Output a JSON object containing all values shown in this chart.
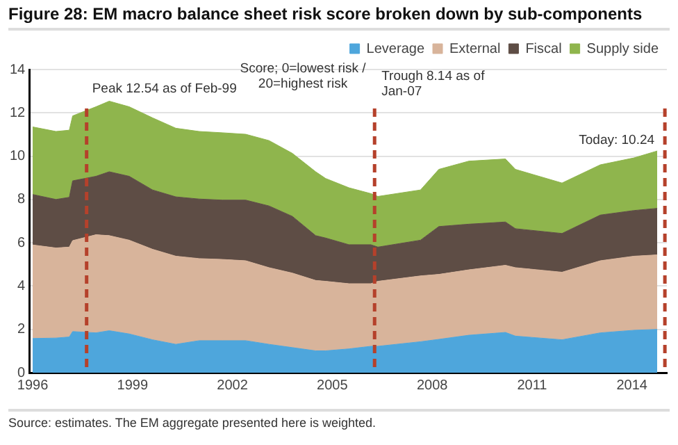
{
  "chart_data": {
    "type": "area",
    "stacked": true,
    "title": "Figure 28: EM macro balance sheet risk score broken down by sub-components",
    "x": [
      1996.0,
      1996.7,
      1997.1,
      1997.2,
      1997.9,
      1998.3,
      1998.9,
      1999.6,
      2000.3,
      2001.0,
      2001.7,
      2002.4,
      2003.1,
      2003.8,
      2004.5,
      2004.8,
      2005.5,
      2006.16,
      2006.37,
      2007.65,
      2008.2,
      2009.1,
      2010.2,
      2010.5,
      2011.9,
      2013.05,
      2014.06,
      2014.76
    ],
    "series": [
      {
        "name": "Leverage",
        "color": "#4ea6dc",
        "values": [
          1.58,
          1.6,
          1.65,
          1.9,
          1.84,
          1.94,
          1.79,
          1.52,
          1.31,
          1.48,
          1.48,
          1.48,
          1.31,
          1.16,
          1.01,
          1.01,
          1.1,
          1.22,
          1.22,
          1.43,
          1.54,
          1.73,
          1.86,
          1.69,
          1.52,
          1.84,
          1.96,
          2.0
        ]
      },
      {
        "name": "External",
        "color": "#d8b49b",
        "values": [
          4.32,
          4.16,
          4.15,
          4.2,
          4.53,
          4.39,
          4.33,
          4.18,
          4.07,
          3.79,
          3.75,
          3.69,
          3.54,
          3.44,
          3.25,
          3.21,
          3.01,
          2.89,
          3.0,
          3.04,
          3.0,
          3.02,
          3.1,
          3.16,
          3.12,
          3.33,
          3.42,
          3.44
        ]
      },
      {
        "name": "Fiscal",
        "color": "#5e4d45",
        "values": [
          2.33,
          2.24,
          2.3,
          2.76,
          2.7,
          2.95,
          2.95,
          2.74,
          2.74,
          2.75,
          2.74,
          2.8,
          2.85,
          2.62,
          2.07,
          2.0,
          1.8,
          1.8,
          1.58,
          1.65,
          2.21,
          2.11,
          2.0,
          1.8,
          1.79,
          2.11,
          2.11,
          2.15
        ]
      },
      {
        "name": "Supply side",
        "color": "#8fb54d",
        "values": [
          3.12,
          3.14,
          3.1,
          3.0,
          3.21,
          3.26,
          3.21,
          3.33,
          3.17,
          3.12,
          3.11,
          3.04,
          3.02,
          2.91,
          2.95,
          2.75,
          2.63,
          2.36,
          2.34,
          2.32,
          2.64,
          2.91,
          2.91,
          2.74,
          2.33,
          2.32,
          2.43,
          2.65
        ]
      }
    ],
    "xlim": [
      1995.9,
      2015.05
    ],
    "xticks": [
      1996,
      1999,
      2002,
      2005,
      2008,
      2011,
      2014
    ],
    "ylim": [
      0,
      14
    ],
    "yticks": [
      0,
      2,
      4,
      6,
      8,
      10,
      12,
      14
    ],
    "grid": "y",
    "legend": "top right",
    "ref_lines": [
      {
        "axis": "x",
        "value": 1997.62,
        "label": "Peak 12.54 as of Feb-99",
        "color": "#b5412b",
        "line_style": "dashed"
      },
      {
        "axis": "x",
        "value": 2006.27,
        "label": "Trough 8.14 as of Jan-07",
        "color": "#b5412b",
        "line_style": "dashed"
      },
      {
        "axis": "x",
        "value": 2014.99,
        "color": "#b5412b",
        "line_style": "dashed"
      }
    ],
    "annotations": [
      "Score; 0=lowest risk / 20=highest risk",
      "Source: estimates. The EM aggregate presented here is weighted.",
      {
        "text": "Today: 10.24",
        "x": 2014.76,
        "y": 10.24
      }
    ]
  }
}
